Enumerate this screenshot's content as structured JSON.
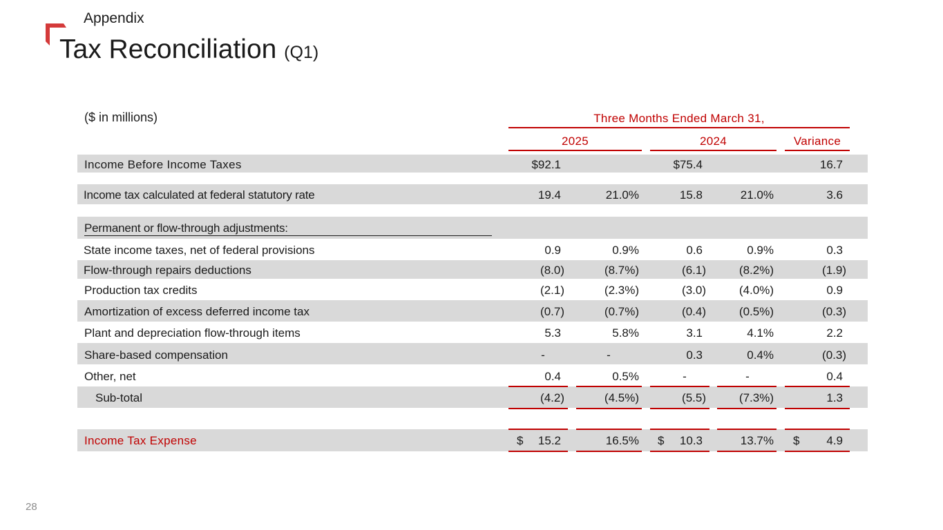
{
  "header": {
    "section": "Appendix",
    "title": "Tax Reconciliation",
    "title_suffix": "(Q1)"
  },
  "table": {
    "units_label": "($ in millions)",
    "period_header": "Three Months Ended March 31,",
    "columns": [
      "2025",
      "2024",
      "Variance"
    ],
    "income_before_taxes": {
      "label": "Income Before Income Taxes",
      "v2025": "$92.1",
      "v2024": "$75.4",
      "variance": "16.7"
    },
    "statutory": {
      "label": "Income tax calculated at federal statutory rate",
      "v2025": "19.4",
      "p2025": "21.0%",
      "v2024": "15.8",
      "p2024": "21.0%",
      "variance": "3.6"
    },
    "adjustments_header": "Permanent or flow-through adjustments:",
    "rows": [
      {
        "label": "State income taxes, net of federal provisions",
        "v2025": "0.9",
        "p2025": "0.9%",
        "v2024": "0.6",
        "p2024": "0.9%",
        "variance": "0.3"
      },
      {
        "label": "Flow-through repairs deductions",
        "v2025": "(8.0)",
        "p2025": "(8.7%)",
        "v2024": "(6.1)",
        "p2024": "(8.2%)",
        "variance": "(1.9)"
      },
      {
        "label": "Production tax credits",
        "v2025": "(2.1)",
        "p2025": "(2.3%)",
        "v2024": "(3.0)",
        "p2024": "(4.0%)",
        "variance": "0.9"
      },
      {
        "label": "Amortization of excess deferred income tax",
        "v2025": "(0.7)",
        "p2025": "(0.7%)",
        "v2024": "(0.4)",
        "p2024": "(0.5%)",
        "variance": "(0.3)"
      },
      {
        "label": "Plant and depreciation flow-through items",
        "v2025": "5.3",
        "p2025": "5.8%",
        "v2024": "3.1",
        "p2024": "4.1%",
        "variance": "2.2"
      },
      {
        "label": "Share-based compensation",
        "v2025": "-",
        "p2025": "-",
        "v2024": "0.3",
        "p2024": "0.4%",
        "variance": "(0.3)"
      },
      {
        "label": "Other, net",
        "v2025": "0.4",
        "p2025": "0.5%",
        "v2024": "-",
        "p2024": "-",
        "variance": "0.4"
      }
    ],
    "subtotal": {
      "label": "Sub-total",
      "v2025": "(4.2)",
      "p2025": "(4.5%)",
      "v2024": "(5.5)",
      "p2024": "(7.3%)",
      "variance": "1.3"
    },
    "total": {
      "label": "Income Tax Expense",
      "currency": "$",
      "v2025": "15.2",
      "p2025": "16.5%",
      "v2024": "10.3",
      "p2024": "13.7%",
      "variance": "4.9"
    }
  },
  "footer": {
    "page_number": "28"
  },
  "colors": {
    "accent": "#c00000",
    "band": "#d9d9d9"
  }
}
